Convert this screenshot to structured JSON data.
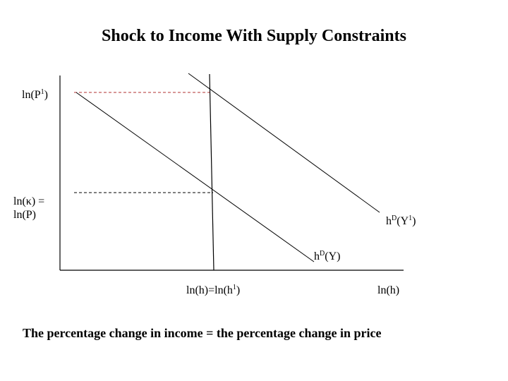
{
  "title": "Shock to Income With Supply Constraints",
  "labels": {
    "p1_base": "ln(P",
    "p1_sup": "1",
    "p1_end": ")",
    "kappa_line1": "ln(κ) =",
    "kappa_line2": "ln(P)",
    "hdy1_base": "h",
    "hdy1_sup": "D",
    "hdy1_mid": "(Y",
    "hdy1_sup2": "1",
    "hdy1_end": ")",
    "hdy_base": "h",
    "hdy_sup": "D",
    "hdy_end": "(Y)",
    "h_eq_base": "ln(h)=ln(h",
    "h_eq_sup": "1",
    "h_eq_end": ")",
    "x_axis": "ln(h)"
  },
  "caption": "The percentage change in income = the percentage change in price",
  "colors": {
    "axis": "#000000",
    "dashed": "#c0392b",
    "curve": "#000000"
  }
}
